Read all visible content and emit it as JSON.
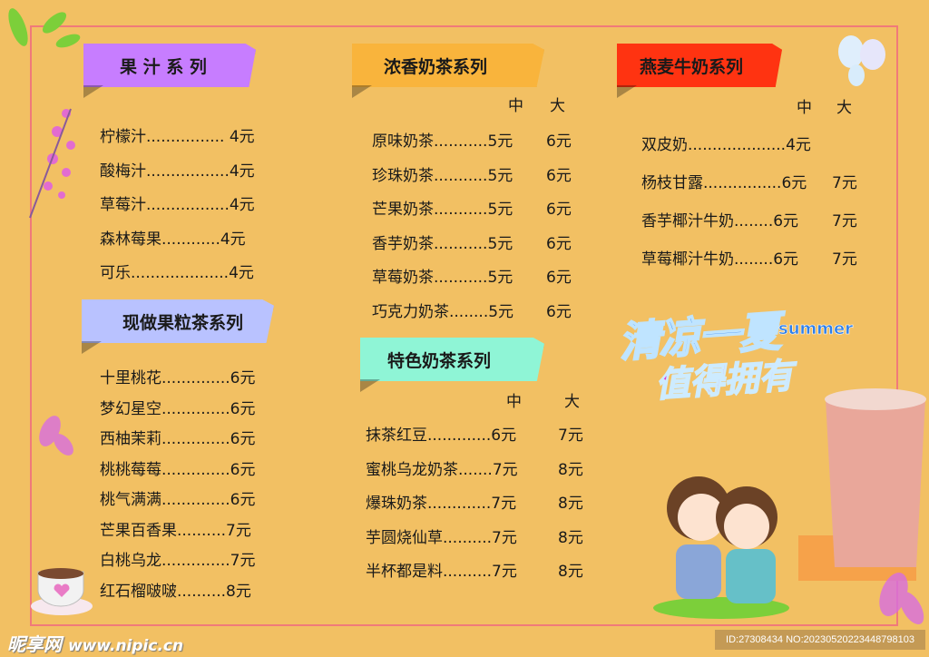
{
  "sections": [
    {
      "title": "果 汁 系 列",
      "color": "#c77dff",
      "items": [
        {
          "line": "柠檬汁................ 4元"
        },
        {
          "line": "酸梅汁.................4元"
        },
        {
          "line": "草莓汁.................4元"
        },
        {
          "line": "森林莓果............4元"
        },
        {
          "line": "可乐....................4元"
        }
      ]
    },
    {
      "title": "现做果粒茶系列",
      "color": "#b9c2ff",
      "items": [
        {
          "line": "十里桃花..............6元"
        },
        {
          "line": "梦幻星空..............6元"
        },
        {
          "line": "西柚茉莉..............6元"
        },
        {
          "line": "桃桃莓莓..............6元"
        },
        {
          "line": "桃气满满..............6元"
        },
        {
          "line": "芒果百香果..........7元"
        },
        {
          "line": "白桃乌龙..............7元"
        },
        {
          "line": "红石榴啵啵..........8元"
        }
      ]
    },
    {
      "title": "浓香奶茶系列",
      "color": "#f9b43c",
      "sizes": [
        "中",
        "大"
      ],
      "items": [
        {
          "line": "原味奶茶...........5元",
          "large": "6元"
        },
        {
          "line": "珍珠奶茶...........5元",
          "large": "6元"
        },
        {
          "line": "芒果奶茶...........5元",
          "large": "6元"
        },
        {
          "line": "香芋奶茶...........5元",
          "large": "6元"
        },
        {
          "line": "草莓奶茶...........5元",
          "large": "6元"
        },
        {
          "line": "巧克力奶茶........5元",
          "large": "6元"
        }
      ]
    },
    {
      "title": "特色奶茶系列",
      "color": "#8ff5d6",
      "sizes": [
        "中",
        "大"
      ],
      "items": [
        {
          "line": "抹茶红豆.............6元",
          "large": "7元"
        },
        {
          "line": "蜜桃乌龙奶茶.......7元",
          "large": "8元"
        },
        {
          "line": "爆珠奶茶.............7元",
          "large": "8元"
        },
        {
          "line": "芋圆烧仙草..........7元",
          "large": "8元"
        },
        {
          "line": "半杯都是料..........7元",
          "large": "8元"
        }
      ]
    },
    {
      "title": "燕麦牛奶系列",
      "color": "#ff3311",
      "sizes": [
        "中",
        "大"
      ],
      "items": [
        {
          "line": "双皮奶....................4元",
          "large": ""
        },
        {
          "line": "杨枝甘露................6元",
          "large": "7元"
        },
        {
          "line": "香芋椰汁牛奶........6元",
          "large": "7元"
        },
        {
          "line": "草莓椰汁牛奶........6元",
          "large": "7元"
        }
      ]
    }
  ],
  "slogan": {
    "line1": "清凉一夏",
    "en": "summer",
    "line2": "值得拥有"
  },
  "watermark": {
    "brand": "昵享网",
    "url": "www.nipic.cn",
    "id": "ID:27308434 NO:20230520223448798103"
  }
}
